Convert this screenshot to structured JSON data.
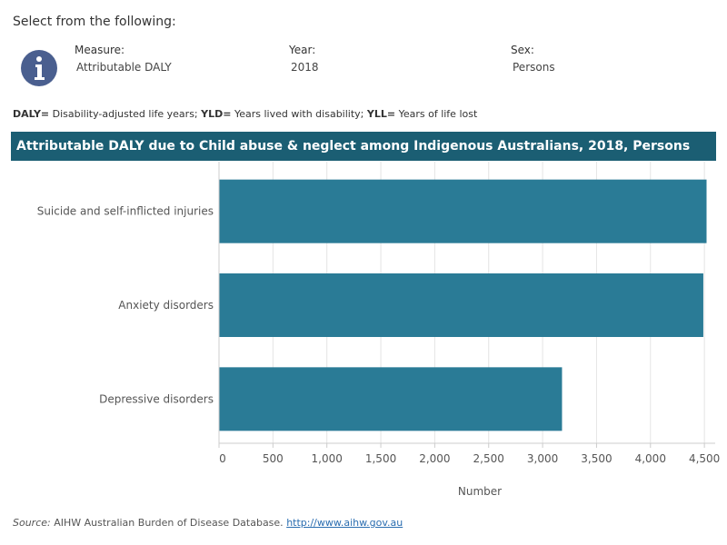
{
  "header": {
    "heading": "Select from the following:",
    "abbrev_daly_key": "DALY=",
    "abbrev_daly_text": " Disability-adjusted life years; ",
    "abbrev_yld_key": "YLD=",
    "abbrev_yld_text": " Years lived with disability; ",
    "abbrev_yll_key": "YLL=",
    "abbrev_yll_text": " Years of life lost"
  },
  "filters": {
    "measure_label": "Measure:",
    "measure_value": "Attributable DALY",
    "year_label": "Year:",
    "year_value": "2018",
    "sex_label": "Sex:",
    "sex_value": "Persons"
  },
  "info_icon": {
    "name": "info-icon",
    "color": "#4a5f8f"
  },
  "colors": {
    "title_bar": "#1b5e73",
    "bar": "#2a7b96"
  },
  "chart_data": {
    "type": "bar",
    "orientation": "horizontal",
    "title": "Attributable DALY due to Child abuse & neglect among Indigenous Australians, 2018, Persons",
    "categories": [
      "Suicide and self-inflicted injuries",
      "Anxiety disorders",
      "Depressive disorders"
    ],
    "values": [
      4520,
      4490,
      3180
    ],
    "xlabel": "Number",
    "ylabel": "",
    "xlim": [
      0,
      4600
    ],
    "ticks": [
      0,
      500,
      1000,
      1500,
      2000,
      2500,
      3000,
      3500,
      4000,
      4500
    ],
    "tick_labels": [
      "0",
      "500",
      "1,000",
      "1,500",
      "2,000",
      "2,500",
      "3,000",
      "3,500",
      "4,000",
      "4,500"
    ],
    "grid": true,
    "legend": "none"
  },
  "footer": {
    "source_label": "Source:",
    "source_text": " AIHW Australian Burden of Disease Database. ",
    "source_link": "http://www.aihw.gov.au"
  }
}
